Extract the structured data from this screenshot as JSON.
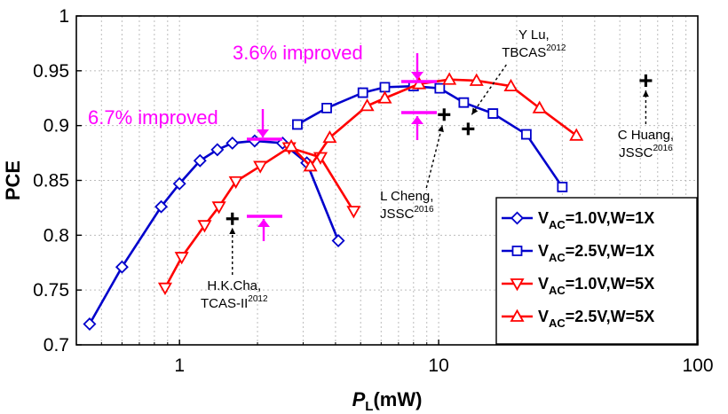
{
  "chart_data": {
    "type": "line",
    "x_scale": "log",
    "xlim": [
      0.4,
      100
    ],
    "ylim": [
      0.7,
      1.0
    ],
    "grid": true,
    "legend_position": "bottom-right",
    "xlabel_main": "P",
    "xlabel_sub": "L",
    "xlabel_rest": "(mW)",
    "ylabel": "PCE",
    "x_ticks": [
      {
        "value": 1,
        "label": "1"
      },
      {
        "value": 10,
        "label": "10"
      },
      {
        "value": 100,
        "label": "100"
      }
    ],
    "y_ticks": [
      {
        "value": 0.7,
        "label": "0.7"
      },
      {
        "value": 0.75,
        "label": "0.75"
      },
      {
        "value": 0.8,
        "label": "0.8"
      },
      {
        "value": 0.85,
        "label": "0.85"
      },
      {
        "value": 0.9,
        "label": "0.9"
      },
      {
        "value": 0.95,
        "label": "0.95"
      },
      {
        "value": 1.0,
        "label": "1"
      }
    ],
    "series": [
      {
        "legend_main": "V",
        "legend_sub": "AC",
        "legend_rest": "=1.0V,W=1X",
        "color": "#0000cc",
        "marker": "diamond",
        "x": [
          0.45,
          0.6,
          0.85,
          1.0,
          1.2,
          1.4,
          1.6,
          1.95,
          2.5,
          3.1,
          4.1
        ],
        "y": [
          0.719,
          0.771,
          0.826,
          0.847,
          0.868,
          0.878,
          0.884,
          0.886,
          0.884,
          0.866,
          0.795
        ]
      },
      {
        "legend_main": "V",
        "legend_sub": "AC",
        "legend_rest": "=2.5V,W=1X",
        "color": "#0000cc",
        "marker": "square",
        "x": [
          2.85,
          3.7,
          5.1,
          6.2,
          8.0,
          10.1,
          12.5,
          16.2,
          21.8,
          30.0
        ],
        "y": [
          0.901,
          0.916,
          0.93,
          0.935,
          0.936,
          0.934,
          0.921,
          0.911,
          0.892,
          0.844
        ]
      },
      {
        "legend_main": "V",
        "legend_sub": "AC",
        "legend_rest": "=1.0V,W=5X",
        "color": "#ff0000",
        "marker": "triangle-down",
        "x": [
          0.88,
          1.02,
          1.25,
          1.42,
          1.65,
          2.05,
          2.65,
          3.5,
          4.7
        ],
        "y": [
          0.752,
          0.78,
          0.809,
          0.826,
          0.849,
          0.863,
          0.88,
          0.871,
          0.822
        ]
      },
      {
        "legend_main": "V",
        "legend_sub": "AC",
        "legend_rest": "=2.5V,W=5X",
        "color": "#ff0000",
        "marker": "triangle-up",
        "x": [
          2.7,
          3.2,
          3.8,
          5.3,
          6.2,
          8.4,
          11.0,
          14.0,
          19.0,
          24.5,
          34.0
        ],
        "y": [
          0.881,
          0.863,
          0.889,
          0.918,
          0.925,
          0.938,
          0.942,
          0.941,
          0.936,
          0.916,
          0.891
        ]
      }
    ],
    "reference_points": [
      {
        "name": "H.K.Cha",
        "venue": "TCAS-II",
        "year": "2012",
        "x": 1.6,
        "y": 0.815
      },
      {
        "name": "Y Lu",
        "venue": "TBCAS",
        "year": "2012",
        "x": 13.0,
        "y": 0.897
      },
      {
        "name": "L Cheng",
        "venue": "JSSC",
        "year": "2016",
        "x": 10.5,
        "y": 0.91
      },
      {
        "name": "C Huang",
        "venue": "JSSC",
        "year": "2016",
        "x": 63.0,
        "y": 0.941
      }
    ],
    "annotations": [
      {
        "text": "6.7% improved"
      },
      {
        "text": "3.6% improved"
      }
    ]
  }
}
